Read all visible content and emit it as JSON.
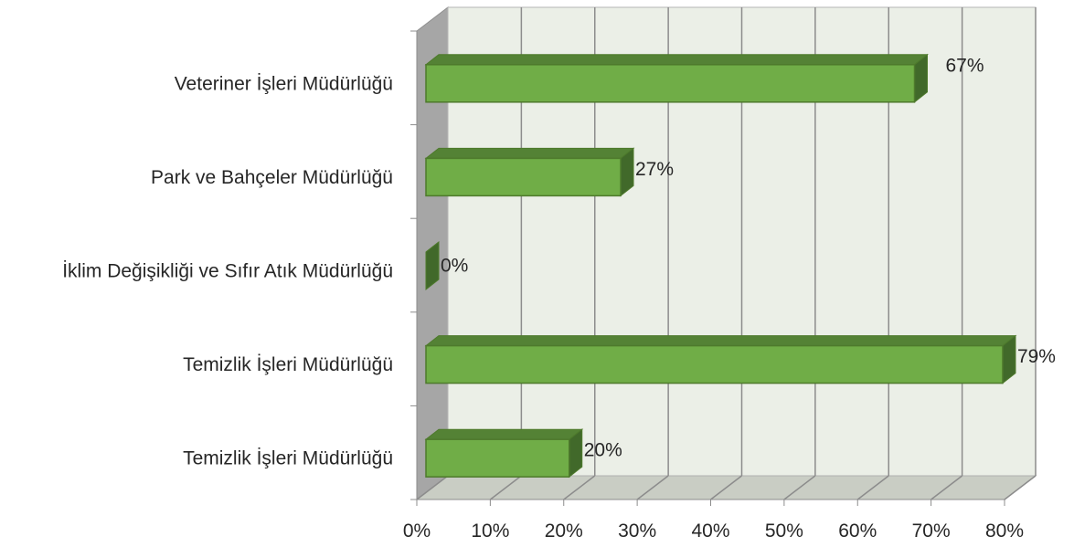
{
  "chart_data": {
    "type": "bar",
    "orientation": "horizontal",
    "style": "3d",
    "categories": [
      "Veteriner İşleri Müdürlüğü",
      "Park ve Bahçeler Müdürlüğü",
      "İklim Değişikliği ve Sıfır Atık Müdürlüğü",
      "Temizlik İşleri Müdürlüğü",
      "Temizlik İşleri Müdürlüğü"
    ],
    "values": [
      67,
      27,
      0,
      79,
      20
    ],
    "data_labels": [
      "67%",
      "27%",
      "0%",
      "79%",
      "20%"
    ],
    "xlim": [
      0,
      80
    ],
    "x_ticks": [
      0,
      10,
      20,
      30,
      40,
      50,
      60,
      70,
      80
    ],
    "x_tick_labels": [
      "0%",
      "10%",
      "20%",
      "30%",
      "40%",
      "50%",
      "60%",
      "70%",
      "80%"
    ],
    "grid": true,
    "legend": "none",
    "colors": {
      "bar_front": "#70ad47",
      "bar_top": "#548235",
      "bar_side": "#41692a",
      "bar_border": "#4e7a2c",
      "back_wall": "#ebefe7",
      "side_wall": "#a6a6a6",
      "floor": "#c9cdc4",
      "gridline": "#8c8c8c"
    }
  }
}
